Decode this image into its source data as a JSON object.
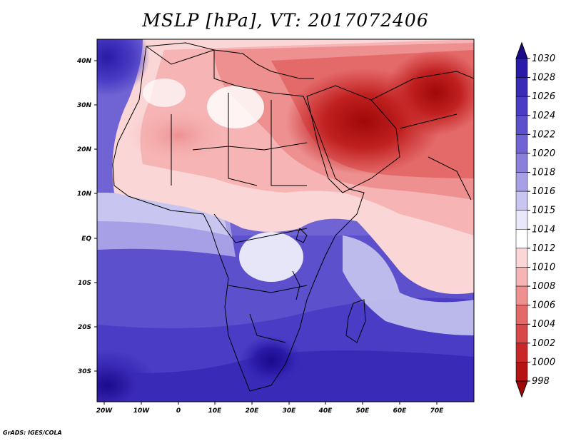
{
  "title": "MSLP [hPa], VT: 2017072406",
  "credit": "GrADS: IGES/COLA",
  "axes": {
    "x_ticks": [
      "20W",
      "10W",
      "0",
      "10E",
      "20E",
      "30E",
      "40E",
      "50E",
      "60E",
      "70E"
    ],
    "y_ticks": [
      "40N",
      "30N",
      "20N",
      "10N",
      "EQ",
      "10S",
      "20S",
      "30S"
    ]
  },
  "colorbar": {
    "levels": [
      "1030",
      "1028",
      "1026",
      "1024",
      "1022",
      "1020",
      "1018",
      "1016",
      "1015",
      "1014",
      "1012",
      "1010",
      "1008",
      "1006",
      "1004",
      "1002",
      "1000",
      "998"
    ],
    "colors": [
      "#1a0a8c",
      "#2a1aa8",
      "#3a2ab8",
      "#4a3cc4",
      "#5c50cc",
      "#7064d4",
      "#8a80dc",
      "#a8a0e6",
      "#c8c6f0",
      "#e8e8fa",
      "#ffffff",
      "#fbd6d6",
      "#f6b4b4",
      "#ee9090",
      "#e46a6a",
      "#d84848",
      "#c82828",
      "#b41414",
      "#a00808"
    ]
  }
}
